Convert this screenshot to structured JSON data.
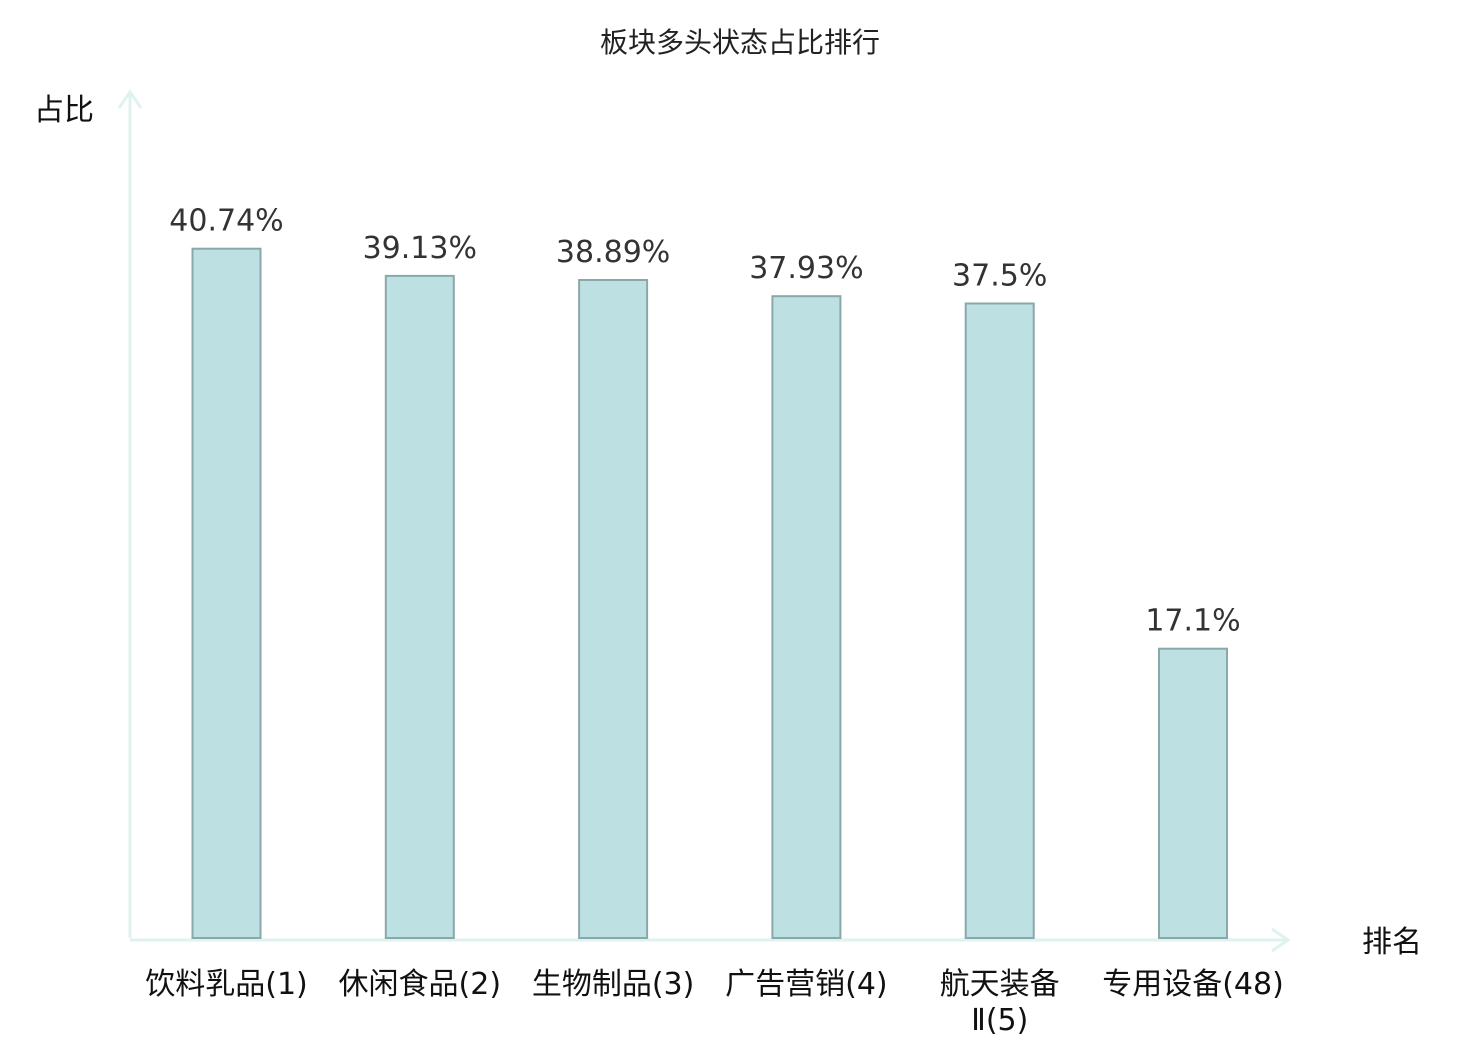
{
  "chart_data": {
    "type": "bar",
    "title": "板块多头状态占比排行",
    "ylabel": "占比",
    "xlabel": "排名",
    "categories": [
      [
        "饮料乳品(1)"
      ],
      [
        "休闲食品(2)"
      ],
      [
        "生物制品(3)"
      ],
      [
        "广告营销(4)"
      ],
      [
        "航天装备",
        "Ⅱ(5)"
      ],
      [
        "专用设备(48)"
      ]
    ],
    "values": [
      40.74,
      39.13,
      38.89,
      37.93,
      37.5,
      17.1
    ],
    "value_labels": [
      "40.74%",
      "39.13%",
      "38.89%",
      "37.93%",
      "37.5%",
      "17.1%"
    ],
    "highlight_index": 5,
    "ylim": [
      0,
      50
    ],
    "grid": false,
    "legend": "none",
    "colors": {
      "bar_fill": "#bde0e3",
      "bar_stroke": "#8aa8aa",
      "axis": "#e0f2ef",
      "label": "#111111",
      "value_label": "#333333",
      "highlight_label": "#e0191b"
    }
  }
}
